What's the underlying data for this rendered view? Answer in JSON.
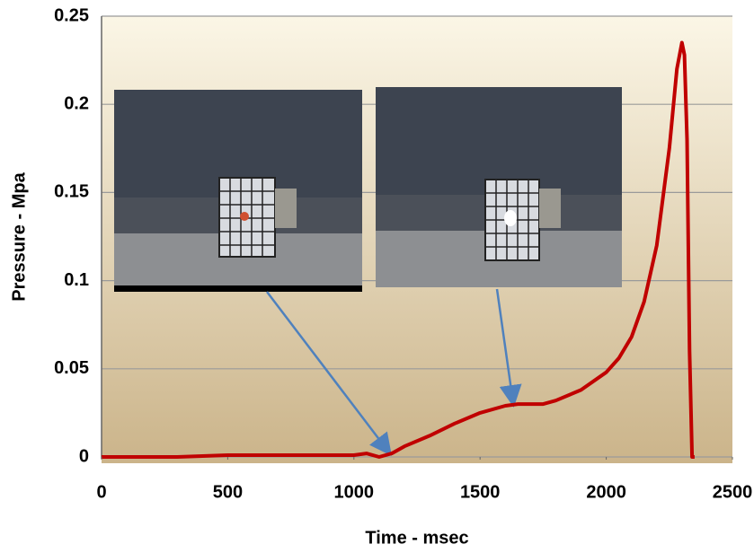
{
  "chart_data": {
    "type": "line",
    "x_label": "Time - msec",
    "y_label": "Pressure - Mpa",
    "x": [
      0,
      300,
      500,
      800,
      1000,
      1050,
      1100,
      1150,
      1200,
      1300,
      1400,
      1500,
      1600,
      1650,
      1700,
      1750,
      1800,
      1900,
      2000,
      2050,
      2100,
      2150,
      2200,
      2250,
      2280,
      2300,
      2310,
      2320,
      2330,
      2340,
      2350
    ],
    "values": [
      0,
      0,
      0.001,
      0.001,
      0.001,
      0.002,
      0,
      0.002,
      0.006,
      0.012,
      0.019,
      0.025,
      0.029,
      0.03,
      0.03,
      0.03,
      0.032,
      0.038,
      0.048,
      0.056,
      0.068,
      0.088,
      0.12,
      0.175,
      0.22,
      0.235,
      0.228,
      0.18,
      0.06,
      0,
      0
    ],
    "color": "#c00000",
    "xlim": [
      0,
      2500
    ],
    "xticks": [
      0,
      500,
      1000,
      1500,
      2000,
      2500
    ],
    "ylim": [
      0,
      0.25
    ],
    "yticks": [
      0,
      0.05,
      0.1,
      0.15,
      0.2,
      0.25
    ],
    "grid": true
  }
}
